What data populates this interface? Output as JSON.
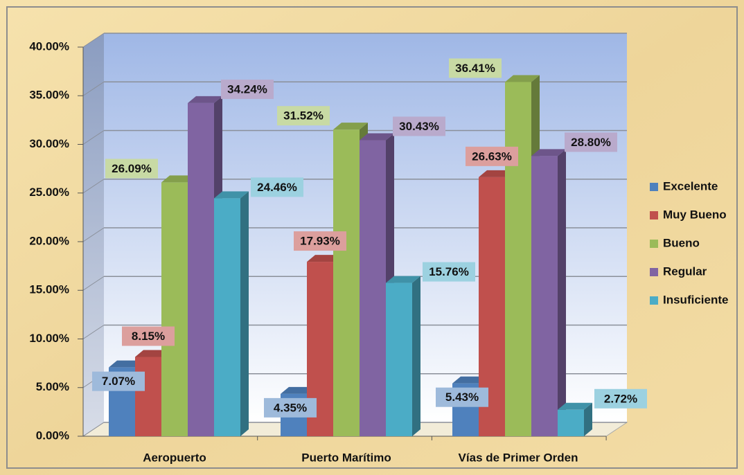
{
  "chart_data": {
    "type": "bar3d",
    "categories": [
      "Aeropuerto",
      "Puerto Marítimo",
      "Vías de Primer Orden"
    ],
    "series": [
      {
        "name": "Excelente",
        "color": "#4f81bd",
        "values": [
          7.07,
          4.35,
          5.43
        ],
        "value_labels": [
          "7.07%",
          "4.35%",
          "5.43%"
        ]
      },
      {
        "name": "Muy Bueno",
        "color": "#c0504d",
        "values": [
          8.15,
          17.93,
          26.63
        ],
        "value_labels": [
          "8.15%",
          "17.93%",
          "26.63%"
        ]
      },
      {
        "name": "Bueno",
        "color": "#9bbb59",
        "values": [
          26.09,
          31.52,
          36.41
        ],
        "value_labels": [
          "26.09%",
          "31.52%",
          "36.41%"
        ]
      },
      {
        "name": "Regular",
        "color": "#8064a2",
        "values": [
          34.24,
          30.43,
          28.8
        ],
        "value_labels": [
          "34.24%",
          "30.43%",
          "28.80%"
        ]
      },
      {
        "name": "Insuficiente",
        "color": "#4bacc6",
        "values": [
          24.46,
          15.76,
          2.72
        ],
        "value_labels": [
          "24.46%",
          "15.76%",
          "2.72%"
        ]
      }
    ],
    "ylim": [
      0,
      40
    ],
    "yticks": [
      {
        "value": 0,
        "label": "0.00%"
      },
      {
        "value": 5,
        "label": "5.00%"
      },
      {
        "value": 10,
        "label": "10.00%"
      },
      {
        "value": 15,
        "label": "15.00%"
      },
      {
        "value": 20,
        "label": "20.00%"
      },
      {
        "value": 25,
        "label": "25.00%"
      },
      {
        "value": 30,
        "label": "30.00%"
      },
      {
        "value": 35,
        "label": "35.00%"
      },
      {
        "value": 40,
        "label": "40.00%"
      }
    ],
    "grid": true,
    "legend": "right"
  }
}
